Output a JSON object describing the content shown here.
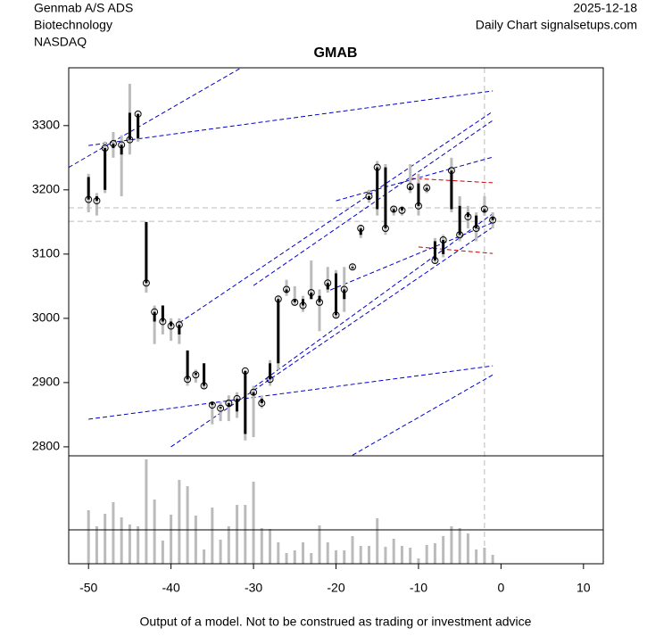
{
  "chart_data": {
    "type": "candlestick",
    "header_left": [
      "Genmab A/S ADS",
      "Biotechnology",
      "NASDAQ"
    ],
    "header_right": [
      "2025-12-18",
      "Daily Chart signalsetups.com"
    ],
    "title": "GMAB",
    "footer": "Output of a model. Not to be construed as trading or investment advice",
    "xlim": [
      -52.4,
      12.4
    ],
    "xticks": [
      -50,
      -40,
      -30,
      -20,
      -10,
      0,
      10
    ],
    "ylim": [
      2786,
      3390
    ],
    "yticks": [
      2800,
      2900,
      3000,
      3100,
      3200,
      3300
    ],
    "vlim": [
      0,
      120
    ],
    "volume_ref": 38,
    "x": [
      -50,
      -49,
      -48,
      -47,
      -46,
      -45,
      -44,
      -43,
      -42,
      -41,
      -40,
      -39,
      -38,
      -37,
      -36,
      -35,
      -34,
      -33,
      -32,
      -31,
      -30,
      -29,
      -28,
      -27,
      -26,
      -25,
      -24,
      -23,
      -22,
      -21,
      -20,
      -19,
      -18,
      -17,
      -16,
      -15,
      -14,
      -13,
      -12,
      -11,
      -10,
      -9,
      -8,
      -7,
      -6,
      -5,
      -4,
      -3,
      -2,
      -1
    ],
    "open": [
      3220,
      3190,
      3200,
      3265,
      3255,
      3320,
      3280,
      3150,
      2995,
      3020,
      2995,
      2975,
      2950,
      2915,
      2930,
      2870,
      2862,
      2862,
      2855,
      2820,
      2880,
      2875,
      2930,
      2930,
      3040,
      3030,
      3030,
      3030,
      3035,
      3045,
      3070,
      3030,
      3078,
      3130,
      3185,
      3170,
      3235,
      3165,
      3172,
      3200,
      3210,
      3200,
      3120,
      3100,
      3170,
      3175,
      3165,
      3160,
      3165,
      3158
    ],
    "high": [
      3225,
      3195,
      3275,
      3290,
      3285,
      3365,
      3320,
      3150,
      3020,
      3020,
      3000,
      3000,
      2950,
      2920,
      2930,
      2870,
      2870,
      2880,
      2885,
      2920,
      2895,
      2880,
      2935,
      3035,
      3060,
      3050,
      3035,
      3090,
      3045,
      3080,
      3075,
      3080,
      3085,
      3145,
      3200,
      3245,
      3240,
      3175,
      3175,
      3240,
      3225,
      3210,
      3125,
      3130,
      3250,
      3190,
      3175,
      3165,
      3190,
      3165
    ],
    "low": [
      3165,
      3160,
      3195,
      3250,
      3190,
      3255,
      3275,
      3040,
      2960,
      2975,
      2965,
      2960,
      2895,
      2900,
      2890,
      2835,
      2840,
      2840,
      2845,
      2810,
      2815,
      2860,
      2895,
      2920,
      3035,
      3020,
      3010,
      3030,
      2980,
      3040,
      3000,
      3010,
      3075,
      3125,
      3180,
      3160,
      3130,
      3160,
      3160,
      3195,
      3160,
      3195,
      3085,
      3095,
      3165,
      3120,
      3140,
      3120,
      3160,
      3140
    ],
    "close": [
      3185,
      3183,
      3265,
      3272,
      3270,
      3278,
      3318,
      3055,
      3010,
      2995,
      2988,
      2990,
      2905,
      2912,
      2895,
      2865,
      2860,
      2868,
      2875,
      2918,
      2885,
      2868,
      2905,
      3030,
      3045,
      3025,
      3020,
      3040,
      3025,
      3055,
      3005,
      3045,
      3080,
      3140,
      3190,
      3235,
      3140,
      3170,
      3168,
      3205,
      3175,
      3203,
      3090,
      3122,
      3230,
      3130,
      3158,
      3140,
      3170,
      3153
    ],
    "volume": [
      60,
      42,
      56,
      69,
      52,
      44,
      42,
      117,
      72,
      26,
      55,
      94,
      87,
      54,
      16,
      63,
      27,
      42,
      66,
      66,
      92,
      40,
      39,
      24,
      12,
      15,
      24,
      12,
      43,
      24,
      15,
      15,
      31,
      20,
      20,
      51,
      19,
      28,
      20,
      18,
      6,
      21,
      23,
      31,
      42,
      40,
      34,
      16,
      18,
      10
    ],
    "lines": [
      {
        "color": "#0000cc",
        "x": [
          -52.4,
          -31.5
        ],
        "y": [
          3235,
          3390
        ]
      },
      {
        "color": "#0000cc",
        "x": [
          -50,
          -1
        ],
        "y": [
          3269,
          3354
        ]
      },
      {
        "color": "#0000cc",
        "x": [
          -39,
          -1
        ],
        "y": [
          2993,
          3322
        ]
      },
      {
        "color": "#0000cc",
        "x": [
          -30,
          -1
        ],
        "y": [
          3051,
          3308
        ]
      },
      {
        "color": "#0000cc",
        "x": [
          -20,
          -1
        ],
        "y": [
          3183,
          3251
        ]
      },
      {
        "color": "#0000cc",
        "x": [
          -40,
          -1
        ],
        "y": [
          2800,
          3142
        ]
      },
      {
        "color": "#0000cc",
        "x": [
          -30,
          -1
        ],
        "y": [
          2892,
          3163
        ]
      },
      {
        "color": "#0000cc",
        "x": [
          -18,
          -1
        ],
        "y": [
          2787,
          2912
        ]
      },
      {
        "color": "#0000cc",
        "x": [
          -50,
          -1
        ],
        "y": [
          2843,
          2926
        ]
      },
      {
        "color": "#0000cc",
        "x": [
          -20.7,
          -1
        ],
        "y": [
          3044,
          3149
        ]
      },
      {
        "color": "#cc0000",
        "x": [
          -11,
          -1
        ],
        "y": [
          3218,
          3211
        ]
      },
      {
        "color": "#cc0000",
        "x": [
          -10,
          -1
        ],
        "y": [
          3111,
          3101
        ]
      }
    ],
    "hlines": [
      3172,
      3151
    ],
    "vline": -2
  }
}
